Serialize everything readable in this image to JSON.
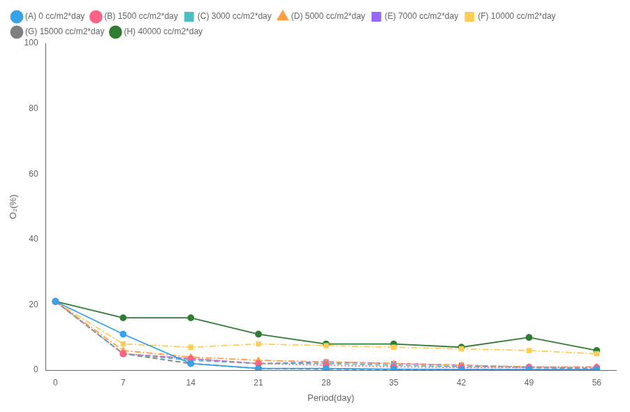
{
  "chart_data": {
    "type": "line",
    "x": [
      0,
      7,
      14,
      21,
      28,
      35,
      42,
      49,
      56
    ],
    "series": [
      {
        "name": "(A) 0 cc/m2*day",
        "color": "#36a2eb",
        "marker": "circle",
        "line_style": "solid",
        "values": [
          21,
          11,
          2,
          0.5,
          0.5,
          0.3,
          0.2,
          0.2,
          0.2
        ]
      },
      {
        "name": "(B) 1500 cc/m2*day",
        "color": "#ff6384",
        "marker": "circle",
        "line_style": "dotted",
        "values": [
          21,
          5,
          3.5,
          2,
          1.5,
          1,
          0.8,
          0.8,
          0.8
        ]
      },
      {
        "name": "(C) 3000 cc/m2*day",
        "color": "#4bc0c0",
        "marker": "square",
        "line_style": "dashed",
        "values": [
          21,
          5,
          3,
          2,
          2,
          1.5,
          1,
          1,
          0.5
        ]
      },
      {
        "name": "(D) 5000 cc/m2*day",
        "color": "#ff9f40",
        "marker": "triangle",
        "line_style": "dashdot",
        "values": [
          21,
          6,
          4,
          3,
          2.5,
          2,
          1.5,
          1,
          1
        ]
      },
      {
        "name": "(E) 7000 cc/m2*day",
        "color": "#9966ff",
        "marker": "square",
        "line_style": "dashed",
        "values": [
          21,
          5,
          3.5,
          2,
          2.5,
          2,
          1.5,
          0.8,
          0.5
        ]
      },
      {
        "name": "(F) 10000 cc/m2*day",
        "color": "#ffcd56",
        "marker": "square",
        "line_style": "dashdot",
        "values": [
          21,
          8,
          7,
          8,
          7.5,
          7,
          6.5,
          6,
          5
        ]
      },
      {
        "name": "(G) 15000 cc/m2*day",
        "color": "#7f7f7f",
        "marker": "circle",
        "line_style": "dashed",
        "values": [
          21,
          5,
          2,
          0.5,
          0.3,
          0.2,
          0.2,
          0.2,
          0.2
        ]
      },
      {
        "name": "(H) 40000 cc/m2*day",
        "color": "#2e7d32",
        "marker": "circle",
        "line_style": "solid",
        "values": [
          21,
          16,
          16,
          11,
          8,
          8,
          7,
          10,
          6
        ]
      }
    ],
    "xlabel": "Period(day)",
    "ylabel": "O₂(%)",
    "xlim": [
      -1,
      58
    ],
    "ylim": [
      0,
      100
    ],
    "xticks": [
      0,
      7,
      14,
      21,
      28,
      35,
      42,
      49,
      56
    ],
    "yticks": [
      0,
      20,
      40,
      60,
      80,
      100
    ],
    "grid": false,
    "legend": "upper left"
  }
}
